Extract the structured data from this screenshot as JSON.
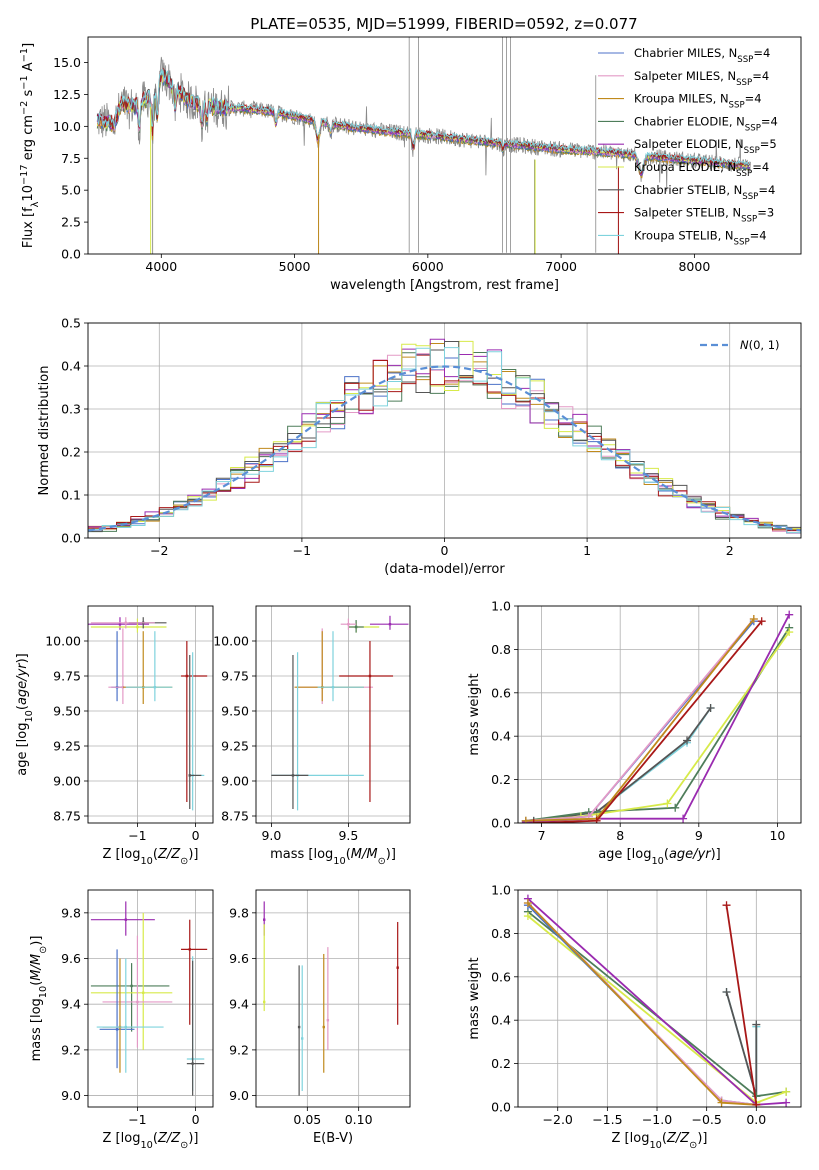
{
  "title": "PLATE=0535, MJD=51999, FIBERID=0592, z=0.077",
  "colors": [
    "#4c72c8",
    "#e39ac6",
    "#c08a1c",
    "#4e7d5a",
    "#9a2bb0",
    "#d7ea4a",
    "#555555",
    "#a81818",
    "#7fd3dd"
  ],
  "chart_data": [
    {
      "type": "line",
      "name": "spectrum",
      "xlabel": "wavelength [Angstrom, rest frame]",
      "ylabel": "Flux [fλ10^-17 erg cm^-2 s^-1 A^-1]",
      "xlim": [
        3450,
        8800
      ],
      "ylim": [
        0,
        17
      ],
      "xticks": [
        4000,
        5000,
        6000,
        7000,
        8000
      ],
      "yticks": [
        0.0,
        2.5,
        5.0,
        7.5,
        10.0,
        12.5,
        15.0
      ],
      "grid": false,
      "legend_position": "top-right",
      "series": [
        {
          "name": "Chabrier MILES, NSSP=4"
        },
        {
          "name": "Salpeter MILES, NSSP=4"
        },
        {
          "name": "Kroupa MILES, NSSP=4"
        },
        {
          "name": "Chabrier ELODIE, NSSP=4"
        },
        {
          "name": "Salpeter ELODIE, NSSP=5"
        },
        {
          "name": "Kroupa ELODIE, NSSP=4"
        },
        {
          "name": "Chabrier STELIB, NSSP=4"
        },
        {
          "name": "Salpeter STELIB, NSSP=3"
        },
        {
          "name": "Kroupa STELIB, NSSP=4"
        }
      ],
      "continuum": {
        "x": [
          3500,
          3650,
          3700,
          3800,
          3900,
          3950,
          4000,
          4100,
          4200,
          4400,
          4600,
          4800,
          5000,
          5200,
          5500,
          6000,
          6500,
          7000,
          7300,
          7500,
          8000,
          8400
        ],
        "y": [
          10.5,
          10.2,
          11.8,
          11.5,
          12.2,
          13.0,
          14.0,
          13.2,
          12.0,
          11.5,
          11.4,
          11.2,
          10.8,
          10.3,
          9.8,
          9.3,
          8.7,
          8.2,
          8.0,
          7.8,
          7.3,
          6.9
        ]
      }
    },
    {
      "type": "line",
      "name": "residual-histogram",
      "xlabel": "(data-model)/error",
      "ylabel": "Normed distribution",
      "xlim": [
        -2.5,
        2.5
      ],
      "ylim": [
        0,
        0.5
      ],
      "xticks": [
        -2,
        -1,
        0,
        1,
        2
      ],
      "yticks": [
        0.0,
        0.1,
        0.2,
        0.3,
        0.4,
        0.5
      ],
      "grid": true,
      "legend_position": "top-right",
      "reference_curve": "N(0,1)",
      "bin_width": 0.1
    },
    {
      "type": "scatter",
      "name": "age-vs-Z",
      "xlabel": "Z [log10(Z/Z⊙)]",
      "ylabel": "age  [log10(age/yr)]",
      "xlim": [
        -1.85,
        0.3
      ],
      "ylim": [
        8.7,
        10.25
      ],
      "xticks": [
        -1,
        0
      ],
      "yticks": [
        8.75,
        9.0,
        9.25,
        9.5,
        9.75,
        10.0
      ],
      "grid": true,
      "points": [
        {
          "x": -1.3,
          "y": 10.12,
          "xerr": [
            0.55,
            0.5
          ],
          "yerr": [
            0.04,
            0.05
          ],
          "s": 4
        },
        {
          "x": -1.0,
          "y": 10.1,
          "xerr": [
            0.8,
            0.5
          ],
          "yerr": [
            0.04,
            0.06
          ],
          "s": 5
        },
        {
          "x": -0.9,
          "y": 10.13,
          "xerr": [
            0.25,
            0.4
          ],
          "yerr": [
            0.04,
            0.04
          ],
          "s": 6
        },
        {
          "x": -1.2,
          "y": 10.13,
          "xerr": [
            0.6,
            0.5
          ],
          "yerr": [
            0.04,
            0.04
          ],
          "s": 1
        },
        {
          "x": -1.35,
          "y": 9.67,
          "xerr": [
            0.1,
            0.1
          ],
          "yerr": [
            0.1,
            0.4
          ],
          "s": 0
        },
        {
          "x": -1.25,
          "y": 9.67,
          "xerr": [
            0.25,
            0.25
          ],
          "yerr": [
            0.12,
            0.42
          ],
          "s": 1
        },
        {
          "x": -0.9,
          "y": 9.67,
          "xerr": [
            0.35,
            0.5
          ],
          "yerr": [
            0.12,
            0.4
          ],
          "s": 2
        },
        {
          "x": -0.7,
          "y": 9.67,
          "xerr": [
            0.5,
            0.3
          ],
          "yerr": [
            0.1,
            0.4
          ],
          "s": 8
        },
        {
          "x": -0.15,
          "y": 9.75,
          "xerr": [
            0.1,
            0.35
          ],
          "yerr": [
            0.9,
            0.25
          ],
          "s": 7
        },
        {
          "x": -0.05,
          "y": 9.04,
          "xerr": [
            0.0,
            0.2
          ],
          "yerr": [
            0.25,
            0.88
          ],
          "s": 8
        },
        {
          "x": -0.1,
          "y": 9.04,
          "xerr": [
            0.0,
            0.2
          ],
          "yerr": [
            0.24,
            0.86
          ],
          "s": 6
        }
      ]
    },
    {
      "type": "scatter",
      "name": "age-vs-mass",
      "xlabel": "mass [log10(M/M⊙)]",
      "ylabel": "",
      "xlim": [
        8.9,
        9.9
      ],
      "ylim": [
        8.7,
        10.25
      ],
      "xticks": [
        9.0,
        9.5
      ],
      "yticks": [
        8.75,
        9.0,
        9.25,
        9.5,
        9.75,
        10.0
      ],
      "grid": true,
      "points": [
        {
          "x": 9.77,
          "y": 10.12,
          "xerr": [
            0.13,
            0.12
          ],
          "yerr": [
            0.04,
            0.06
          ],
          "s": 4
        },
        {
          "x": 9.55,
          "y": 10.1,
          "xerr": [
            0.05,
            0.15
          ],
          "yerr": [
            0.04,
            0.04
          ],
          "s": 5
        },
        {
          "x": 9.55,
          "y": 10.1,
          "xerr": [
            0.05,
            0.05
          ],
          "yerr": [
            0.04,
            0.05
          ],
          "s": 3
        },
        {
          "x": 9.5,
          "y": 10.12,
          "xerr": [
            0.05,
            0.05
          ],
          "yerr": [
            0.04,
            0.04
          ],
          "s": 1
        },
        {
          "x": 9.33,
          "y": 9.67,
          "xerr": [
            0.17,
            0.33
          ],
          "yerr": [
            0.12,
            0.42
          ],
          "s": 1
        },
        {
          "x": 9.33,
          "y": 9.67,
          "xerr": [
            0.18,
            0.27
          ],
          "yerr": [
            0.1,
            0.4
          ],
          "s": 2
        },
        {
          "x": 9.4,
          "y": 9.67,
          "xerr": [
            0.1,
            0.2
          ],
          "yerr": [
            0.1,
            0.4
          ],
          "s": 8
        },
        {
          "x": 9.64,
          "y": 9.75,
          "xerr": [
            0.2,
            0.15
          ],
          "yerr": [
            0.9,
            0.25
          ],
          "s": 7
        },
        {
          "x": 9.17,
          "y": 9.04,
          "xerr": [
            0.17,
            0.43
          ],
          "yerr": [
            0.25,
            0.88
          ],
          "s": 8
        },
        {
          "x": 9.14,
          "y": 9.04,
          "xerr": [
            0.14,
            0.1
          ],
          "yerr": [
            0.24,
            0.86
          ],
          "s": 6
        }
      ]
    },
    {
      "type": "line",
      "name": "mass-weight-vs-age",
      "xlabel": "age  [log10(age/yr)]",
      "ylabel": "mass weight",
      "xlim": [
        6.7,
        10.3
      ],
      "ylim": [
        0,
        1.0
      ],
      "xticks": [
        7,
        8,
        9,
        10
      ],
      "yticks": [
        0.0,
        0.2,
        0.4,
        0.6,
        0.8,
        1.0
      ],
      "grid": true,
      "series": [
        {
          "x": [
            6.8,
            7.6,
            9.7
          ],
          "y": [
            0.01,
            0.03,
            0.93
          ]
        },
        {
          "x": [
            6.8,
            7.6,
            9.7
          ],
          "y": [
            0.01,
            0.03,
            0.94
          ]
        },
        {
          "x": [
            6.8,
            7.7,
            9.7
          ],
          "y": [
            0.01,
            0.02,
            0.94
          ]
        },
        {
          "x": [
            6.8,
            7.6,
            8.7,
            10.15
          ],
          "y": [
            0.01,
            0.05,
            0.07,
            0.9
          ]
        },
        {
          "x": [
            6.8,
            7.7,
            8.8,
            10.15
          ],
          "y": [
            0.005,
            0.02,
            0.02,
            0.96
          ]
        },
        {
          "x": [
            6.8,
            7.5,
            8.6,
            10.15
          ],
          "y": [
            0.01,
            0.03,
            0.09,
            0.88
          ]
        },
        {
          "x": [
            6.9,
            7.7,
            8.85,
            9.15
          ],
          "y": [
            0.01,
            0.05,
            0.38,
            0.53
          ]
        },
        {
          "x": [
            6.9,
            7.7,
            9.8
          ],
          "y": [
            0.0,
            0.01,
            0.93
          ]
        },
        {
          "x": [
            6.9,
            7.7,
            8.85,
            9.15
          ],
          "y": [
            0.01,
            0.05,
            0.37,
            0.53
          ]
        }
      ]
    },
    {
      "type": "scatter",
      "name": "mass-vs-Z",
      "xlabel": "Z [log10(Z/Z⊙)]",
      "ylabel": "mass [log10(M/M⊙)]",
      "xlim": [
        -1.85,
        0.3
      ],
      "ylim": [
        8.95,
        9.9
      ],
      "xticks": [
        -1,
        0
      ],
      "yticks": [
        9.0,
        9.2,
        9.4,
        9.6,
        9.8
      ],
      "grid": true,
      "points": [
        {
          "x": -1.2,
          "y": 9.77,
          "xerr": [
            0.6,
            0.5
          ],
          "yerr": [
            0.07,
            0.08
          ],
          "s": 4
        },
        {
          "x": -1.1,
          "y": 9.48,
          "xerr": [
            0.7,
            0.65
          ],
          "yerr": [
            0.2,
            0.1
          ],
          "s": 3
        },
        {
          "x": -0.9,
          "y": 9.45,
          "xerr": [
            0.9,
            0.5
          ],
          "yerr": [
            0.25,
            0.35
          ],
          "s": 5
        },
        {
          "x": -1.0,
          "y": 9.41,
          "xerr": [
            0.6,
            0.6
          ],
          "yerr": [
            0.2,
            0.29
          ],
          "s": 1
        },
        {
          "x": -1.35,
          "y": 9.29,
          "xerr": [
            0.3,
            0.3
          ],
          "yerr": [
            0.17,
            0.35
          ],
          "s": 0
        },
        {
          "x": -1.3,
          "y": 9.3,
          "xerr": [
            0.3,
            0.3
          ],
          "yerr": [
            0.2,
            0.3
          ],
          "s": 2
        },
        {
          "x": -1.2,
          "y": 9.3,
          "xerr": [
            0.5,
            0.65
          ],
          "yerr": [
            0.2,
            0.3
          ],
          "s": 8
        },
        {
          "x": -0.1,
          "y": 9.64,
          "xerr": [
            0.15,
            0.3
          ],
          "yerr": [
            0.33,
            0.13
          ],
          "s": 7
        },
        {
          "x": -0.05,
          "y": 9.16,
          "xerr": [
            0.1,
            0.2
          ],
          "yerr": [
            0.14,
            0.45
          ],
          "s": 8
        },
        {
          "x": -0.05,
          "y": 9.14,
          "xerr": [
            0.1,
            0.2
          ],
          "yerr": [
            0.14,
            0.45
          ],
          "s": 6
        }
      ]
    },
    {
      "type": "scatter",
      "name": "mass-vs-EBV",
      "xlabel": "E(B-V)",
      "ylabel": "",
      "xlim": [
        0.0,
        0.15
      ],
      "ylim": [
        8.95,
        9.9
      ],
      "xticks": [
        0.05,
        0.1
      ],
      "xticklabels": [
        "0.05",
        "0.10"
      ],
      "yticks": [
        9.0,
        9.2,
        9.4,
        9.6,
        9.8
      ],
      "grid": true,
      "points": [
        {
          "x": 0.008,
          "y": 9.77,
          "xerr": [
            0,
            0
          ],
          "yerr": [
            0.07,
            0.08
          ],
          "s": 4
        },
        {
          "x": 0.008,
          "y": 9.41,
          "xerr": [
            0,
            0
          ],
          "yerr": [
            0.04,
            0.34
          ],
          "s": 5
        },
        {
          "x": 0.042,
          "y": 9.3,
          "xerr": [
            0,
            0
          ],
          "yerr": [
            0.3,
            0.27
          ],
          "s": 6
        },
        {
          "x": 0.045,
          "y": 9.25,
          "xerr": [
            0,
            0
          ],
          "yerr": [
            0.23,
            0.32
          ],
          "s": 8
        },
        {
          "x": 0.066,
          "y": 9.3,
          "xerr": [
            0,
            0
          ],
          "yerr": [
            0.2,
            0.32
          ],
          "s": 2
        },
        {
          "x": 0.07,
          "y": 9.33,
          "xerr": [
            0,
            0
          ],
          "yerr": [
            0.13,
            0.32
          ],
          "s": 1
        },
        {
          "x": 0.138,
          "y": 9.56,
          "xerr": [
            0,
            0
          ],
          "yerr": [
            0.25,
            0.2
          ],
          "s": 7
        }
      ]
    },
    {
      "type": "line",
      "name": "mass-weight-vs-Z",
      "xlabel": "Z [log10(Z/Z⊙)]",
      "ylabel": "mass weight",
      "xlim": [
        -2.4,
        0.45
      ],
      "ylim": [
        0,
        1.0
      ],
      "xticks": [
        -2.0,
        -1.5,
        -1.0,
        -0.5,
        0.0
      ],
      "yticks": [
        0.0,
        0.2,
        0.4,
        0.6,
        0.8,
        1.0
      ],
      "grid": true,
      "series": [
        {
          "x": [
            -2.3,
            -0.35,
            0.0
          ],
          "y": [
            0.93,
            0.03,
            0.01
          ]
        },
        {
          "x": [
            -2.3,
            -0.35,
            0.0
          ],
          "y": [
            0.94,
            0.03,
            0.01
          ]
        },
        {
          "x": [
            -2.3,
            -0.35,
            0.0
          ],
          "y": [
            0.94,
            0.02,
            0.01
          ]
        },
        {
          "x": [
            -2.3,
            0.0,
            0.3
          ],
          "y": [
            0.9,
            0.05,
            0.07
          ]
        },
        {
          "x": [
            -2.3,
            0.0,
            0.3
          ],
          "y": [
            0.96,
            0.01,
            0.02
          ]
        },
        {
          "x": [
            -2.3,
            0.0,
            0.3
          ],
          "y": [
            0.88,
            0.02,
            0.07
          ]
        },
        {
          "x": [
            -0.3,
            0.0,
            0.0
          ],
          "y": [
            0.53,
            0.05,
            0.38
          ]
        },
        {
          "x": [
            -0.3,
            0.0
          ],
          "y": [
            0.93,
            0.01
          ]
        },
        {
          "x": [
            -0.3,
            0.0,
            0.0
          ],
          "y": [
            0.53,
            0.05,
            0.37
          ]
        }
      ]
    }
  ]
}
